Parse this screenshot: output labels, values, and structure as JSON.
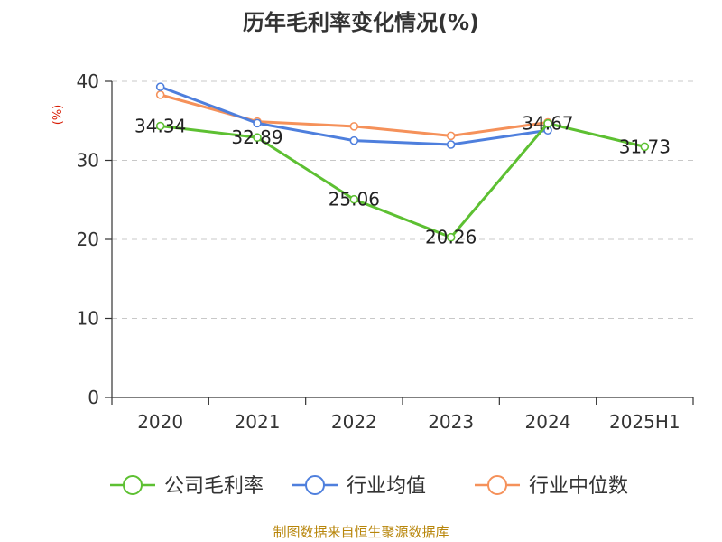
{
  "chart_data": {
    "type": "line",
    "title": "历年毛利率变化情况(%)",
    "ylabel": "(%)",
    "xlabel": "",
    "categories": [
      "2020",
      "2021",
      "2022",
      "2023",
      "2024",
      "2025H1"
    ],
    "ylim": [
      0,
      40
    ],
    "yticks": [
      0,
      10,
      20,
      30,
      40
    ],
    "grid": true,
    "legend_position": "bottom",
    "series": [
      {
        "name": "公司毛利率",
        "color": "#5dc032",
        "values": [
          34.34,
          32.89,
          25.06,
          20.26,
          34.67,
          31.73
        ],
        "labels": [
          "34.34",
          "32.89",
          "25.06",
          "20.26",
          "34.67",
          "31.73"
        ]
      },
      {
        "name": "行业均值",
        "color": "#4e7fdd",
        "values": [
          39.3,
          34.7,
          32.5,
          32.0,
          33.8,
          null
        ]
      },
      {
        "name": "行业中位数",
        "color": "#f5915a",
        "values": [
          38.3,
          34.9,
          34.3,
          33.1,
          34.8,
          null
        ]
      }
    ],
    "source": "制图数据来自恒生聚源数据库"
  }
}
